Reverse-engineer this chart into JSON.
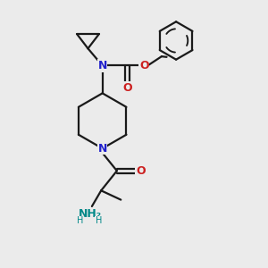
{
  "bg_color": "#ebebeb",
  "line_color": "#1a1a1a",
  "N_color": "#2020cc",
  "O_color": "#cc2020",
  "NH2_color": "#008888",
  "lw": 1.6,
  "xlim": [
    0,
    10
  ],
  "ylim": [
    0,
    10
  ]
}
